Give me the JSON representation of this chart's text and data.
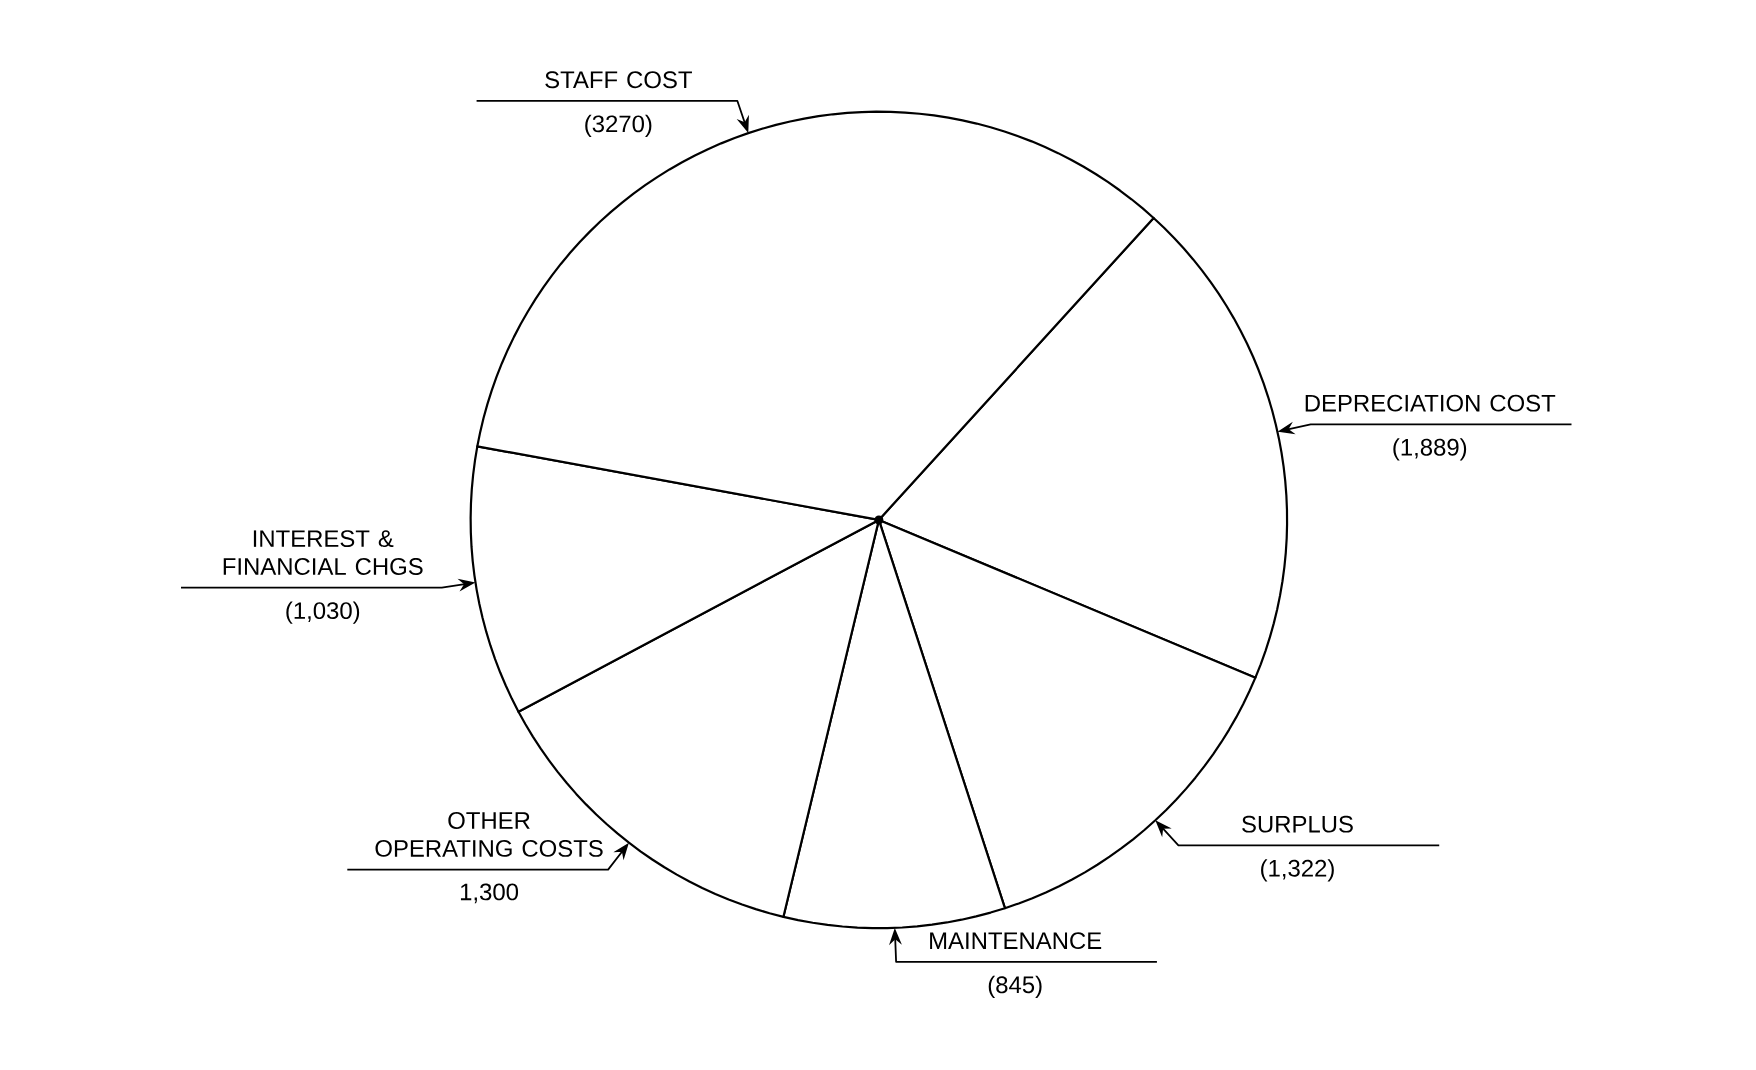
{
  "chart_data": {
    "type": "pie",
    "categories": [
      "DEPRECIATION COST",
      "SURPLUS",
      "MAINTENANCE",
      "OTHER OPERATING COSTS",
      "INTEREST & FINANCIAL CHGS",
      "STAFF COST"
    ],
    "values": [
      1889,
      1322,
      845,
      1300,
      1030,
      3270
    ],
    "value_labels": [
      "(1,889)",
      "(1,322)",
      "(845)",
      "1,300",
      "(1,030)",
      "(3270)"
    ],
    "colors": [
      "#ffffff",
      "#ffffff",
      "#ffffff",
      "#ffffff",
      "#ffffff",
      "#ffffff"
    ]
  }
}
